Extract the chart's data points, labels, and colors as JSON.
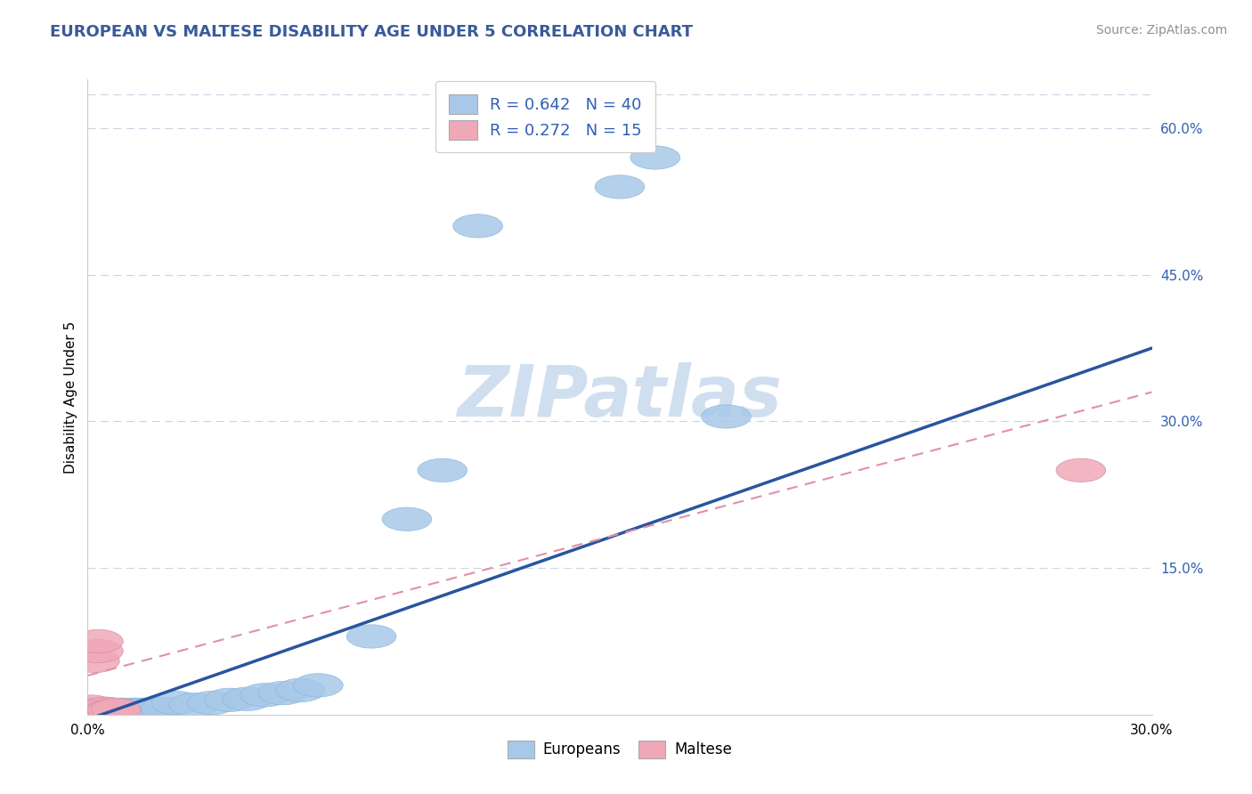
{
  "title": "EUROPEAN VS MALTESE DISABILITY AGE UNDER 5 CORRELATION CHART",
  "source": "Source: ZipAtlas.com",
  "ylabel": "Disability Age Under 5",
  "xlim": [
    0.0,
    0.3
  ],
  "ylim": [
    0.0,
    0.65
  ],
  "ytick_labels_right": [
    "15.0%",
    "30.0%",
    "45.0%",
    "60.0%"
  ],
  "ytick_vals_right": [
    0.15,
    0.3,
    0.45,
    0.6
  ],
  "european_R": 0.642,
  "european_N": 40,
  "maltese_R": 0.272,
  "maltese_N": 15,
  "european_color": "#a8c8e8",
  "maltese_color": "#f0a8b8",
  "european_line_color": "#2855a0",
  "maltese_line_color": "#e090a8",
  "grid_color": "#c8d4e4",
  "title_color": "#3a5a9a",
  "watermark_color": "#d0dff0",
  "source_color": "#909090",
  "legend_R_color": "#3060b0",
  "eu_line_x0": 0.0,
  "eu_line_y0": -0.005,
  "eu_line_x1": 0.3,
  "eu_line_y1": 0.375,
  "mt_line_x0": 0.0,
  "mt_line_y0": 0.04,
  "mt_line_x1": 0.3,
  "mt_line_y1": 0.33,
  "europeans_x": [
    0.001,
    0.001,
    0.002,
    0.002,
    0.003,
    0.004,
    0.004,
    0.005,
    0.005,
    0.006,
    0.007,
    0.008,
    0.009,
    0.01,
    0.01,
    0.011,
    0.012,
    0.013,
    0.014,
    0.015,
    0.016,
    0.018,
    0.02,
    0.022,
    0.025,
    0.03,
    0.035,
    0.04,
    0.045,
    0.05,
    0.055,
    0.06,
    0.065,
    0.08,
    0.09,
    0.1,
    0.11,
    0.15,
    0.16,
    0.18
  ],
  "europeans_y": [
    0.003,
    0.005,
    0.003,
    0.004,
    0.004,
    0.003,
    0.005,
    0.003,
    0.005,
    0.004,
    0.004,
    0.003,
    0.004,
    0.004,
    0.005,
    0.003,
    0.004,
    0.005,
    0.004,
    0.005,
    0.005,
    0.005,
    0.006,
    0.006,
    0.012,
    0.01,
    0.012,
    0.015,
    0.016,
    0.02,
    0.022,
    0.025,
    0.03,
    0.08,
    0.2,
    0.25,
    0.5,
    0.54,
    0.57,
    0.305
  ],
  "maltese_x": [
    0.001,
    0.001,
    0.001,
    0.002,
    0.002,
    0.003,
    0.003,
    0.004,
    0.004,
    0.005,
    0.005,
    0.006,
    0.007,
    0.008,
    0.28
  ],
  "maltese_y": [
    0.002,
    0.005,
    0.008,
    0.003,
    0.055,
    0.065,
    0.075,
    0.004,
    0.003,
    0.004,
    0.006,
    0.003,
    0.004,
    0.005,
    0.25
  ]
}
